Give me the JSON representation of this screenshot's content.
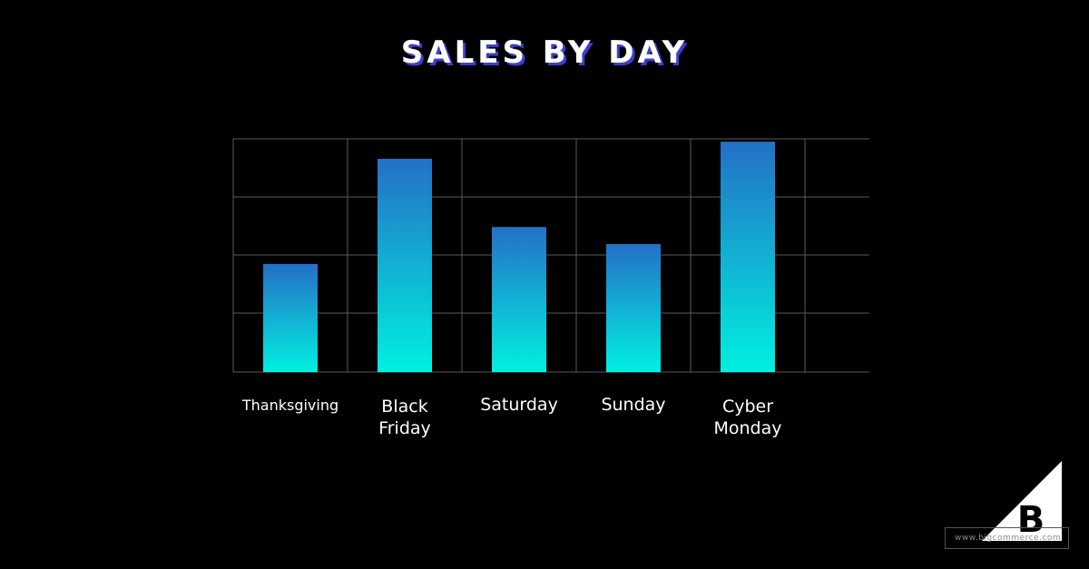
{
  "chart_data": {
    "type": "bar",
    "title": "SALES BY DAY",
    "categories": [
      "Thanksgiving",
      "Black Friday",
      "Saturday",
      "Sunday",
      "Cyber Monday"
    ],
    "category_lines": [
      [
        "Thanksgiving"
      ],
      [
        "Black",
        "Friday"
      ],
      [
        "Saturday"
      ],
      [
        "Sunday"
      ],
      [
        "Cyber",
        "Monday"
      ]
    ],
    "values": [
      1.9,
      3.75,
      2.55,
      2.25,
      4.05
    ],
    "ylim": [
      0,
      4.1
    ],
    "xlabel": "",
    "ylabel": "",
    "grid": true,
    "colors": {
      "bar_top": "#2470c6",
      "bar_bottom": "#00f0e0",
      "grid": "#5a5a5a"
    }
  },
  "logo": {
    "letter": "B",
    "url": "www.bigcommerce.com"
  }
}
